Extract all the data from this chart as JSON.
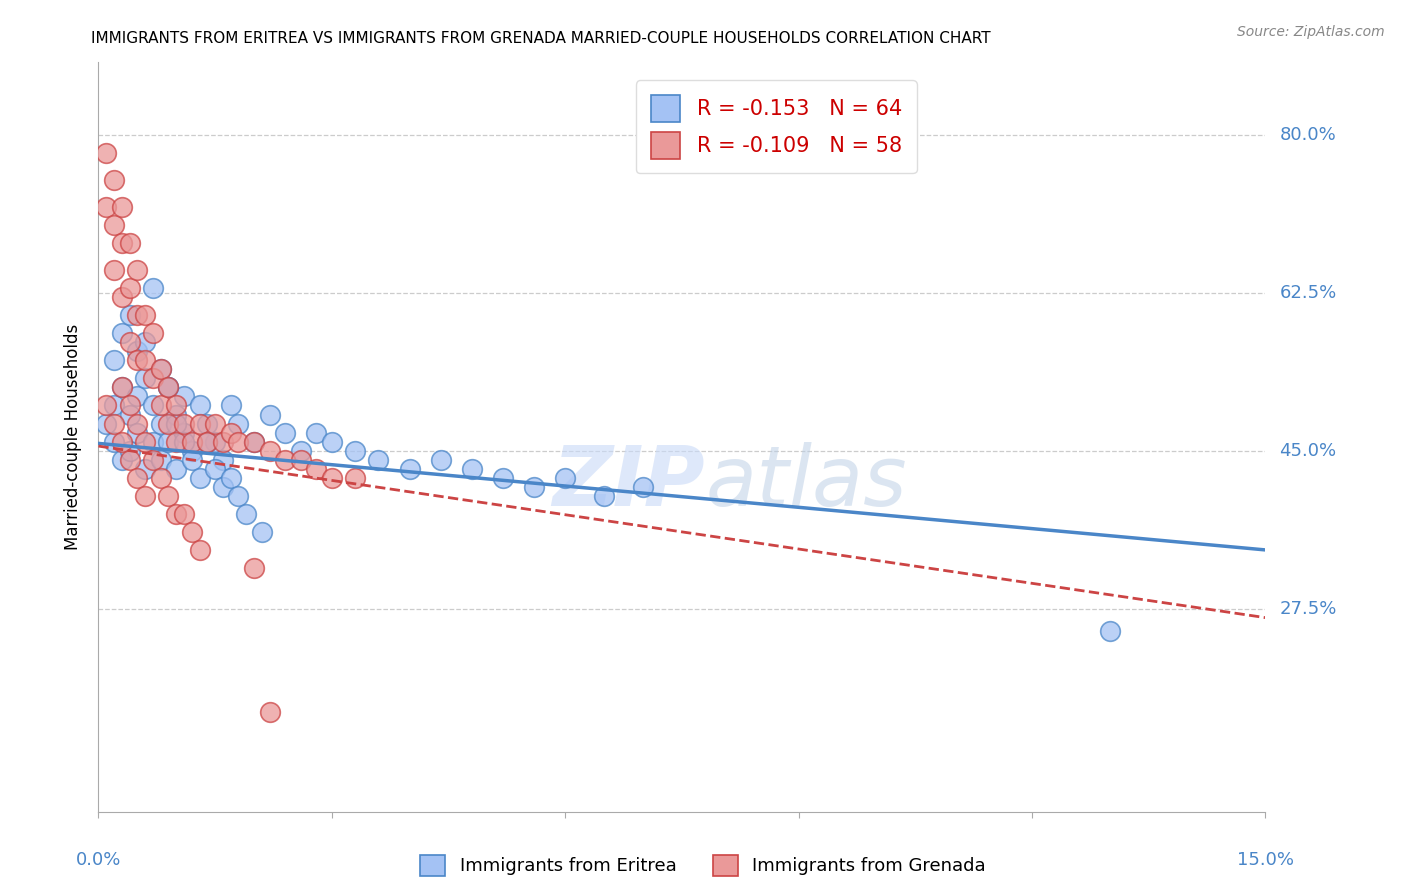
{
  "title": "IMMIGRANTS FROM ERITREA VS IMMIGRANTS FROM GRENADA MARRIED-COUPLE HOUSEHOLDS CORRELATION CHART",
  "source": "Source: ZipAtlas.com",
  "ylabel": "Married-couple Households",
  "ytick_labels": [
    "27.5%",
    "45.0%",
    "62.5%",
    "80.0%"
  ],
  "ytick_values": [
    0.275,
    0.45,
    0.625,
    0.8
  ],
  "xlim": [
    0.0,
    0.15
  ],
  "ylim": [
    0.05,
    0.88
  ],
  "legend_eritrea_R": "-0.153",
  "legend_eritrea_N": "64",
  "legend_grenada_R": "-0.109",
  "legend_grenada_N": "58",
  "color_eritrea": "#a4c2f4",
  "color_grenada": "#ea9999",
  "color_eritrea_line": "#4a86c8",
  "color_grenada_line": "#cc4444",
  "color_label": "#4a86c8",
  "watermark_color": "#c9daf8",
  "eritrea_x": [
    0.001,
    0.002,
    0.002,
    0.003,
    0.003,
    0.004,
    0.004,
    0.005,
    0.005,
    0.006,
    0.006,
    0.007,
    0.007,
    0.008,
    0.008,
    0.009,
    0.009,
    0.01,
    0.01,
    0.011,
    0.011,
    0.012,
    0.013,
    0.014,
    0.015,
    0.016,
    0.017,
    0.018,
    0.02,
    0.022,
    0.024,
    0.026,
    0.028,
    0.03,
    0.033,
    0.036,
    0.04,
    0.044,
    0.048,
    0.052,
    0.056,
    0.06,
    0.065,
    0.07,
    0.002,
    0.003,
    0.004,
    0.005,
    0.006,
    0.007,
    0.008,
    0.009,
    0.01,
    0.011,
    0.012,
    0.013,
    0.014,
    0.015,
    0.016,
    0.017,
    0.018,
    0.019,
    0.021,
    0.13
  ],
  "eritrea_y": [
    0.48,
    0.5,
    0.46,
    0.52,
    0.44,
    0.49,
    0.45,
    0.51,
    0.47,
    0.53,
    0.43,
    0.5,
    0.46,
    0.48,
    0.44,
    0.52,
    0.46,
    0.49,
    0.43,
    0.51,
    0.47,
    0.45,
    0.5,
    0.48,
    0.46,
    0.44,
    0.5,
    0.48,
    0.46,
    0.49,
    0.47,
    0.45,
    0.47,
    0.46,
    0.45,
    0.44,
    0.43,
    0.44,
    0.43,
    0.42,
    0.41,
    0.42,
    0.4,
    0.41,
    0.55,
    0.58,
    0.6,
    0.56,
    0.57,
    0.63,
    0.54,
    0.52,
    0.48,
    0.46,
    0.44,
    0.42,
    0.46,
    0.43,
    0.41,
    0.42,
    0.4,
    0.38,
    0.36,
    0.25
  ],
  "grenada_x": [
    0.001,
    0.001,
    0.002,
    0.002,
    0.002,
    0.003,
    0.003,
    0.003,
    0.004,
    0.004,
    0.004,
    0.005,
    0.005,
    0.005,
    0.006,
    0.006,
    0.007,
    0.007,
    0.008,
    0.008,
    0.009,
    0.009,
    0.01,
    0.01,
    0.011,
    0.012,
    0.013,
    0.014,
    0.015,
    0.016,
    0.017,
    0.018,
    0.02,
    0.022,
    0.024,
    0.026,
    0.028,
    0.03,
    0.033,
    0.001,
    0.002,
    0.003,
    0.003,
    0.004,
    0.004,
    0.005,
    0.005,
    0.006,
    0.006,
    0.007,
    0.008,
    0.009,
    0.01,
    0.011,
    0.012,
    0.013,
    0.02,
    0.022
  ],
  "grenada_y": [
    0.78,
    0.72,
    0.75,
    0.7,
    0.65,
    0.72,
    0.68,
    0.62,
    0.68,
    0.63,
    0.57,
    0.65,
    0.6,
    0.55,
    0.6,
    0.55,
    0.58,
    0.53,
    0.54,
    0.5,
    0.52,
    0.48,
    0.5,
    0.46,
    0.48,
    0.46,
    0.48,
    0.46,
    0.48,
    0.46,
    0.47,
    0.46,
    0.46,
    0.45,
    0.44,
    0.44,
    0.43,
    0.42,
    0.42,
    0.5,
    0.48,
    0.52,
    0.46,
    0.5,
    0.44,
    0.48,
    0.42,
    0.46,
    0.4,
    0.44,
    0.42,
    0.4,
    0.38,
    0.38,
    0.36,
    0.34,
    0.32,
    0.16
  ],
  "eritrea_trendline_x": [
    0.0,
    0.15
  ],
  "eritrea_trendline_y": [
    0.458,
    0.34
  ],
  "grenada_trendline_x": [
    0.0,
    0.15
  ],
  "grenada_trendline_y": [
    0.455,
    0.265
  ]
}
